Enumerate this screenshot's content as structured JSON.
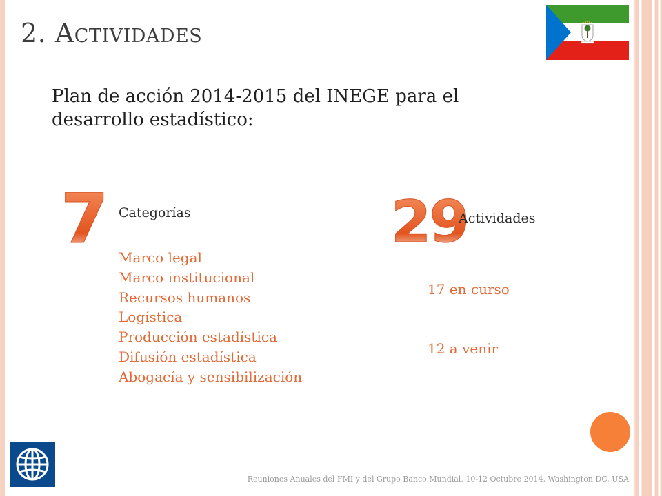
{
  "slide": {
    "title": "2. Actividades",
    "intro": "Plan de acción 2014-2015 del INEGE para el desarrollo estadístico:",
    "categories_count": "7",
    "categories_label": "Categorías",
    "categories": [
      "Marco legal",
      "Marco institucional",
      "Recursos humanos",
      "Logística",
      "Producción estadística",
      "Difusión estadística",
      "Abogacía y sensibilización"
    ],
    "activities_count": "29",
    "activities_label": "Actividades",
    "activities": [
      "17 en curso",
      "12 a venir"
    ],
    "footer": "Reuniones Anuales del FMI y del Grupo Banco Mundial, 10-12 Octubre 2014, Washington DC, USA"
  },
  "icons": {
    "flag": "equatorial-guinea-flag-icon",
    "logo": "world-bank-logo-icon",
    "dot": "orange-circle"
  },
  "colors": {
    "accent": "#e36a35",
    "circle": "#f78038",
    "frame": "#f6cfbe",
    "logo_blue": "#0a4a8c",
    "flag_green": "#3e9a2d",
    "flag_red": "#e32118",
    "flag_blue": "#0073ce"
  }
}
